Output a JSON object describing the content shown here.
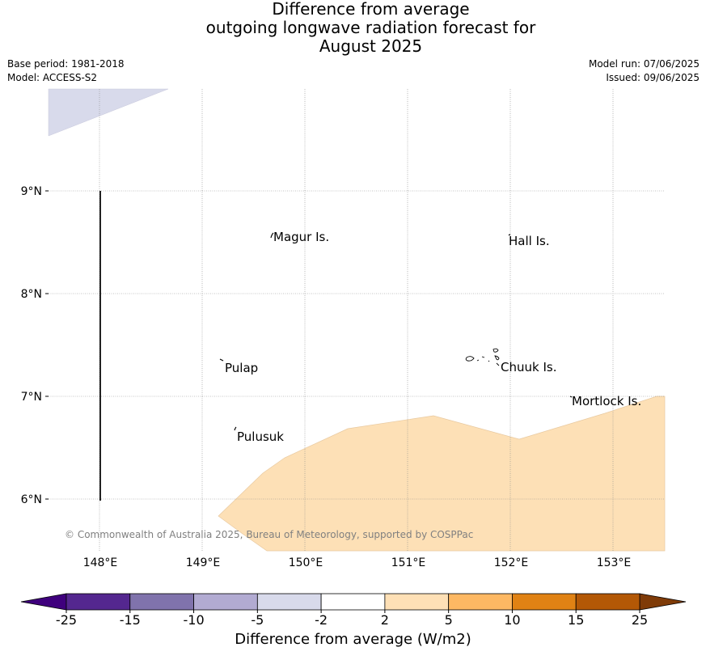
{
  "title": {
    "lines": [
      "Difference from average",
      "outgoing longwave radiation forecast for",
      "August 2025"
    ]
  },
  "meta": {
    "base_period": "Base period: 1981-2018",
    "model": "Model: ACCESS-S2",
    "model_run": "Model run: 07/06/2025",
    "issued": "Issued: 09/06/2025"
  },
  "map": {
    "lat_labels": [
      {
        "value": 9,
        "text": "9°N"
      },
      {
        "value": 8,
        "text": "8°N"
      },
      {
        "value": 7,
        "text": "7°N"
      },
      {
        "value": 6,
        "text": "6°N"
      }
    ],
    "lon_labels": [
      {
        "value": 148,
        "text": "148°E"
      },
      {
        "value": 149,
        "text": "149°E"
      },
      {
        "value": 150,
        "text": "150°E"
      },
      {
        "value": 151,
        "text": "151°E"
      },
      {
        "value": 152,
        "text": "152°E"
      },
      {
        "value": 153,
        "text": "153°E"
      }
    ],
    "places": [
      {
        "name": "Magur Is."
      },
      {
        "name": "Hall Is."
      },
      {
        "name": "Pulap"
      },
      {
        "name": "Chuuk Is."
      },
      {
        "name": "Mortlock Is."
      },
      {
        "name": "Pulusuk"
      }
    ],
    "copyright": "© Commonwealth of Australia 2025, Bureau of Meteorology, supported by COSPPac",
    "colors": {
      "light_orange": "#fce0b6",
      "light_purple": "#d9d9ea"
    }
  },
  "colorbar": {
    "title": "Difference from average (W/m2)",
    "ticks": [
      "-25",
      "-15",
      "-10",
      "-5",
      "-2",
      "2",
      "5",
      "10",
      "15",
      "25"
    ],
    "colors": [
      "#3f007d",
      "#54278f",
      "#8073ac",
      "#b2abd2",
      "#d8daeb",
      "#ffffff",
      "#fee0b6",
      "#fdb863",
      "#e08214",
      "#b35806",
      "#7f3b08"
    ]
  }
}
